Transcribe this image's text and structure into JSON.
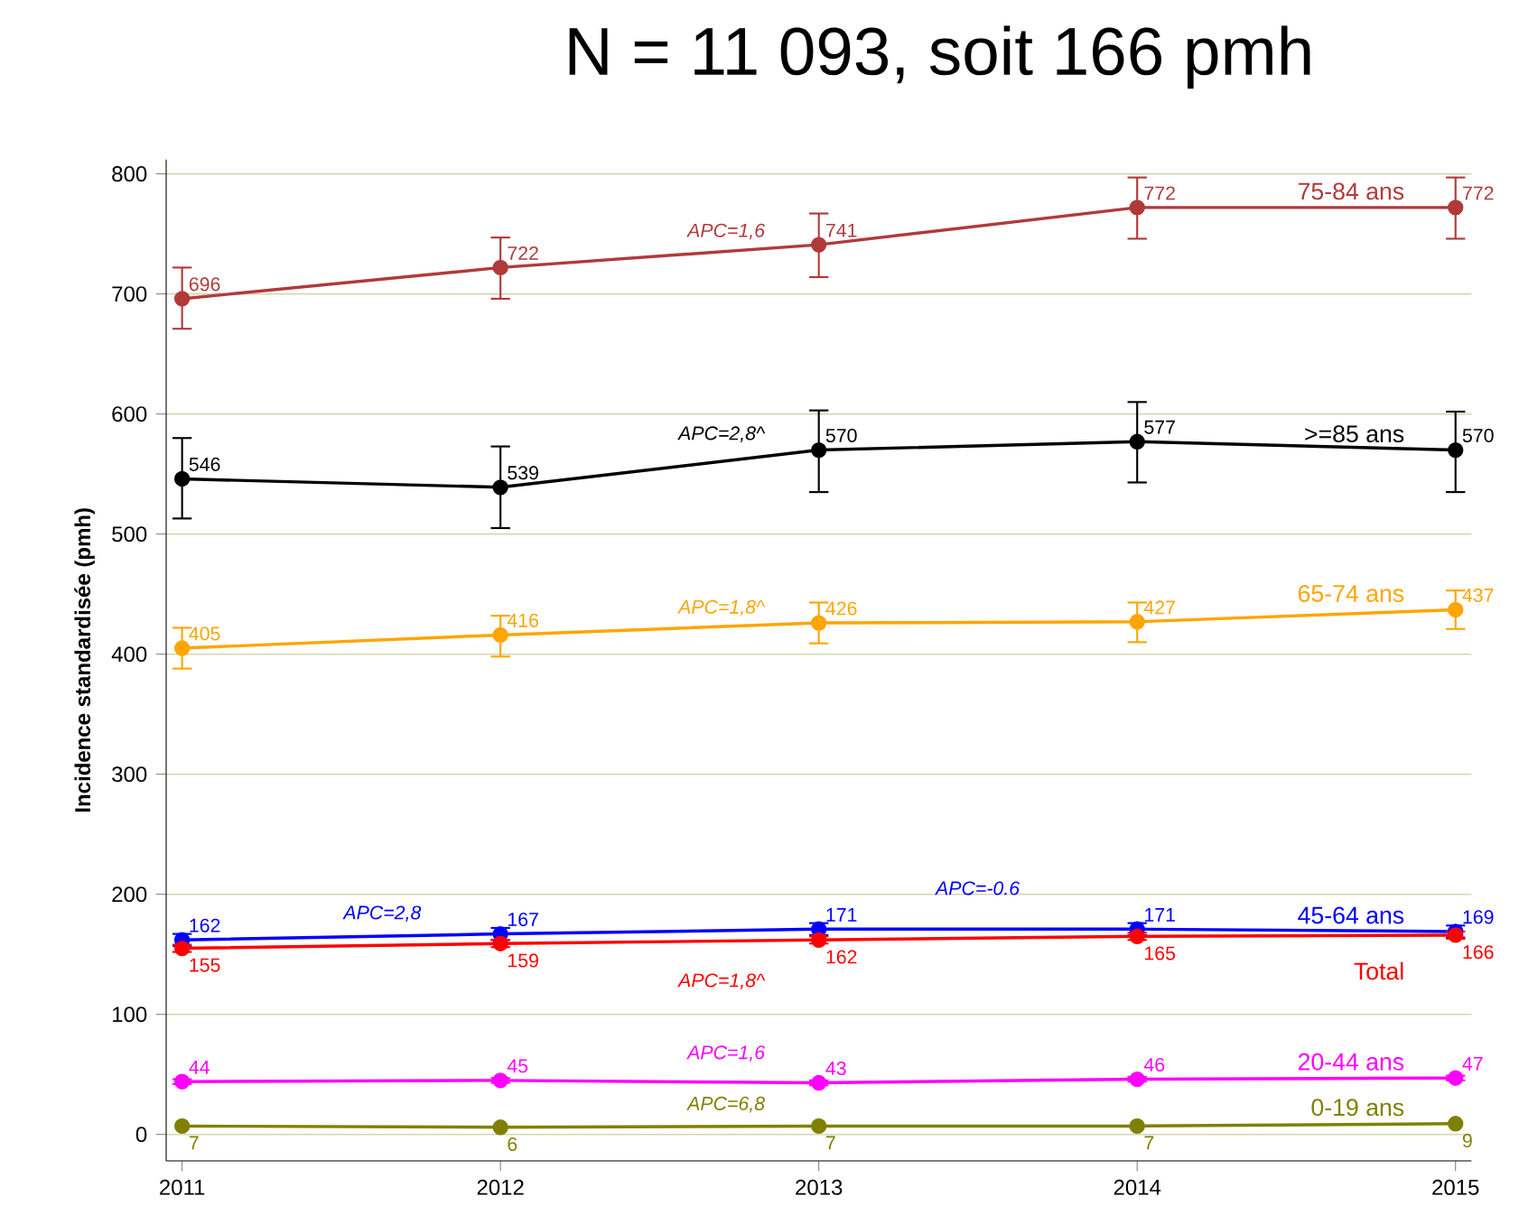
{
  "chart_data": {
    "type": "line",
    "title": "N = 11 093, soit 166 pmh",
    "ylabel": "Incidence standardisée (pmh)",
    "x": [
      2011,
      2012,
      2013,
      2014,
      2015
    ],
    "xlim": [
      2010.95,
      2015.05
    ],
    "xticks": [
      2011,
      2012,
      2013,
      2014,
      2015
    ],
    "ylim": [
      -22,
      812
    ],
    "yticks": [
      0,
      100,
      200,
      300,
      400,
      500,
      600,
      700,
      800
    ],
    "grid": "y",
    "marker": "circle",
    "line_style": "solid",
    "data_labels": true,
    "series": [
      {
        "name": "75-84 ans",
        "color": "#b03a3a",
        "values": [
          696,
          722,
          741,
          772,
          772
        ],
        "errors": [
          [
            671,
            722
          ],
          [
            696,
            747
          ],
          [
            714,
            767
          ],
          [
            746,
            797
          ],
          [
            746,
            797
          ]
        ]
      },
      {
        "name": ">=85 ans",
        "color": "#000000",
        "values": [
          546,
          539,
          570,
          577,
          570
        ],
        "errors": [
          [
            513,
            580
          ],
          [
            505,
            573
          ],
          [
            535,
            603
          ],
          [
            543,
            610
          ],
          [
            535,
            602
          ]
        ]
      },
      {
        "name": "65-74 ans",
        "color": "#ffa500",
        "values": [
          405,
          416,
          426,
          427,
          437
        ],
        "errors": [
          [
            388,
            422
          ],
          [
            398,
            432
          ],
          [
            409,
            443
          ],
          [
            410,
            443
          ],
          [
            421,
            453
          ]
        ]
      },
      {
        "name": "45-64 ans",
        "color": "#0000ff",
        "values": [
          162,
          167,
          171,
          171,
          169
        ],
        "errors": [
          5,
          5,
          5,
          5,
          5
        ]
      },
      {
        "name": "Total",
        "color": "#ff0000",
        "values": [
          155,
          159,
          162,
          165,
          166
        ],
        "errors": [
          3,
          3,
          3,
          3,
          3
        ]
      },
      {
        "name": "20-44 ans",
        "color": "#ff00ff",
        "values": [
          44,
          45,
          43,
          46,
          47
        ],
        "errors": [
          2,
          2,
          2,
          2,
          2
        ]
      },
      {
        "name": "0-19 ans",
        "color": "#808000",
        "values": [
          7,
          6,
          7,
          7,
          9
        ]
      }
    ],
    "annotations": [
      "APC=1,6",
      "APC=2,8^",
      "APC=1,8^",
      "APC=2,8",
      "APC=-0.6",
      "APC=1,8^",
      "APC=1,6",
      "APC=6,8"
    ]
  }
}
